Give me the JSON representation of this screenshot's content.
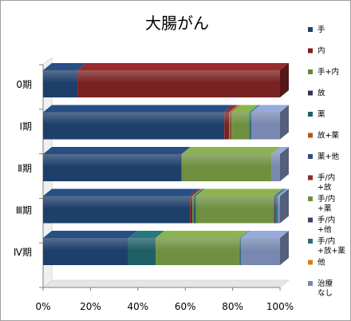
{
  "chart_data": {
    "type": "bar",
    "orientation": "horizontal",
    "stacked": "percent",
    "title": "大腸がん",
    "categories": [
      "0期",
      "Ⅰ期",
      "Ⅱ期",
      "Ⅲ期",
      "Ⅳ期"
    ],
    "xticks": [
      "0%",
      "20%",
      "40%",
      "60%",
      "80%",
      "100%"
    ],
    "xlim": [
      0,
      100
    ],
    "grid": false,
    "legend_position": "right",
    "series": [
      {
        "name": "手",
        "color": "#1F3F6B",
        "values": [
          14.5,
          76.5,
          58.5,
          62.0,
          36.0
        ]
      },
      {
        "name": "内",
        "color": "#7A2222",
        "values": [
          85.5,
          2.0,
          0.0,
          1.0,
          0.0
        ]
      },
      {
        "name": "手+内",
        "color": "#66883A",
        "values": [
          0.0,
          0.5,
          0.0,
          0.5,
          0.0
        ]
      },
      {
        "name": "放",
        "color": "#3D2F5A",
        "values": [
          0.0,
          0.0,
          0.0,
          0.0,
          0.0
        ]
      },
      {
        "name": "薬",
        "color": "#1F5F66",
        "values": [
          0.0,
          0.0,
          0.0,
          1.0,
          11.5
        ]
      },
      {
        "name": "放+薬",
        "color": "#B05A1A",
        "values": [
          0.0,
          0.0,
          0.0,
          0.0,
          0.0
        ]
      },
      {
        "name": "薬+他",
        "color": "#2E4F7E",
        "values": [
          0.0,
          0.0,
          0.0,
          0.0,
          0.0
        ]
      },
      {
        "name": "手/内\n+放",
        "color": "#8A2E2E",
        "values": [
          0.0,
          0.5,
          0.0,
          0.0,
          0.0
        ]
      },
      {
        "name": "手/内\n+薬",
        "color": "#6E9040",
        "values": [
          0.0,
          7.5,
          38.0,
          33.0,
          35.5
        ]
      },
      {
        "name": "手/内\n+他",
        "color": "#4A3A6B",
        "values": [
          0.0,
          0.0,
          0.0,
          0.5,
          0.0
        ]
      },
      {
        "name": "手/内\n+放+薬",
        "color": "#2F6E78",
        "values": [
          0.0,
          1.0,
          0.0,
          1.0,
          0.5
        ]
      },
      {
        "name": "他",
        "color": "#E07A1E",
        "values": [
          0.0,
          0.0,
          0.0,
          0.0,
          0.0
        ]
      },
      {
        "name": "治療\nなし",
        "color": "#7888B0",
        "values": [
          0.0,
          12.0,
          3.5,
          1.0,
          16.5
        ]
      }
    ]
  }
}
